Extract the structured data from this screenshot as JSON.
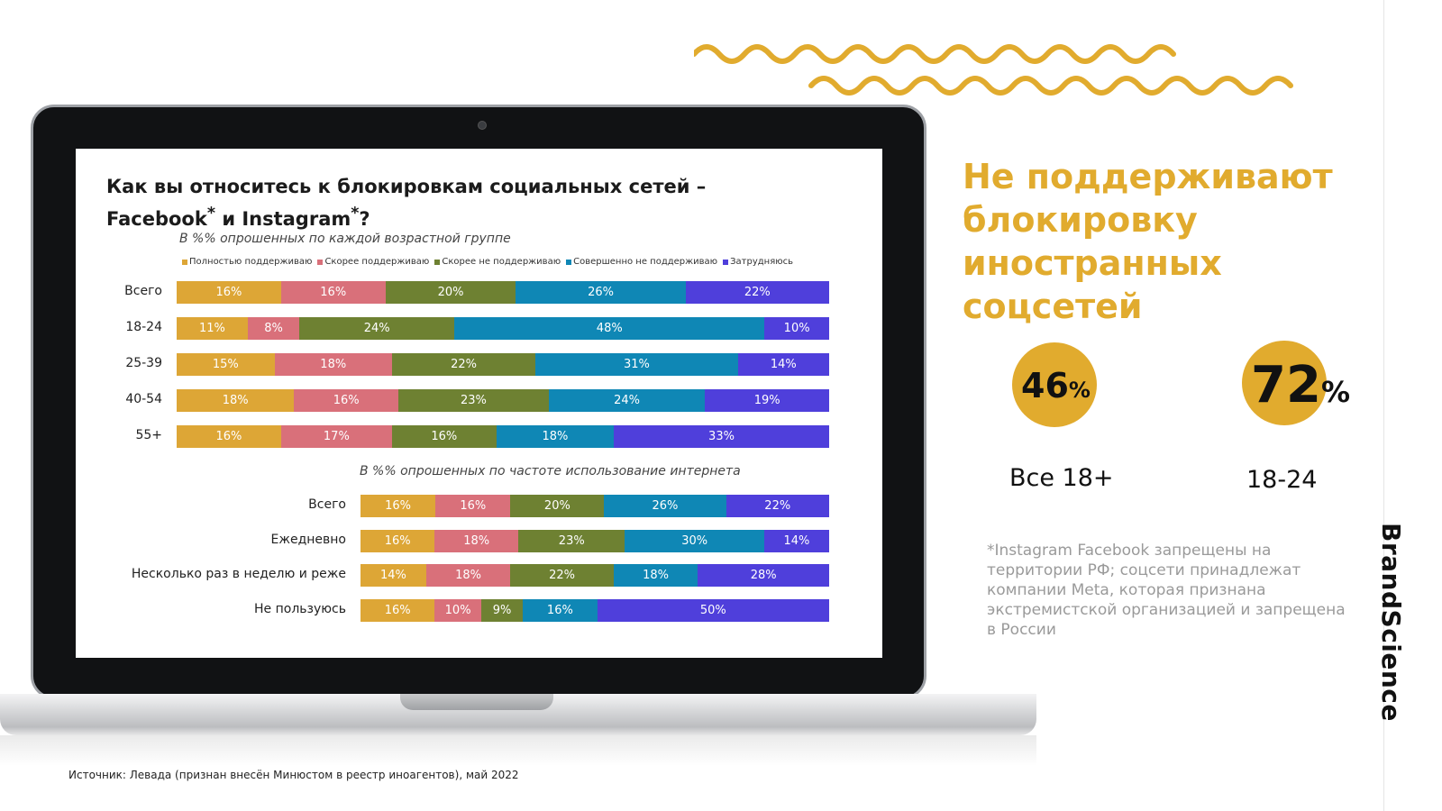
{
  "chart_title_line1": "Как вы относитесь к блокировкам социальных сетей –",
  "chart_title_line2_a": "Facebook",
  "chart_title_line2_b": "и Instagram",
  "chart_title_line2_c": "?",
  "asterisk": "*",
  "colors": {
    "full_support": "#dda636",
    "rather_support": "#d9707a",
    "rather_not_support": "#6e8132",
    "strongly_not_support": "#0f87b5",
    "hard_to_say": "#4f3fdb",
    "accent": "#e1ab2e"
  },
  "chart_data": [
    {
      "type": "bar",
      "stacked": "horizontal-100",
      "subtitle": "В %% опрошенных по каждой возрастной группе",
      "legend": [
        "Полностью поддерживаю",
        "Скорее поддерживаю",
        "Скорее не поддерживаю",
        "Совершенно не поддерживаю",
        "Затрудняюсь"
      ],
      "categories": [
        "Всего",
        "18-24",
        "25-39",
        "40-54",
        "55+"
      ],
      "series": [
        {
          "name": "Полностью поддерживаю",
          "values": [
            16,
            11,
            15,
            18,
            16
          ]
        },
        {
          "name": "Скорее поддерживаю",
          "values": [
            16,
            8,
            18,
            16,
            17
          ]
        },
        {
          "name": "Скорее не поддерживаю",
          "values": [
            20,
            24,
            22,
            23,
            16
          ]
        },
        {
          "name": "Совершенно не поддерживаю",
          "values": [
            26,
            48,
            31,
            24,
            18
          ]
        },
        {
          "name": "Затрудняюсь",
          "values": [
            22,
            10,
            14,
            19,
            33
          ]
        }
      ]
    },
    {
      "type": "bar",
      "stacked": "horizontal-100",
      "subtitle": "В %% опрошенных по частоте использование интернета",
      "categories": [
        "Всего",
        "Ежедневно",
        "Несколько раз в неделю и реже",
        "Не пользуюсь"
      ],
      "series": [
        {
          "name": "Полностью поддерживаю",
          "values": [
            16,
            16,
            14,
            16
          ]
        },
        {
          "name": "Скорее поддерживаю",
          "values": [
            16,
            18,
            18,
            10
          ]
        },
        {
          "name": "Скорее не поддерживаю",
          "values": [
            20,
            23,
            22,
            9
          ]
        },
        {
          "name": "Совершенно не поддерживаю",
          "values": [
            26,
            30,
            18,
            16
          ]
        },
        {
          "name": "Затрудняюсь",
          "values": [
            22,
            14,
            28,
            50
          ]
        }
      ]
    }
  ],
  "headline": "Не поддерживают блокировку иностранных соцсетей",
  "stats": [
    {
      "value": "46",
      "unit": "%",
      "label": "Все 18+"
    },
    {
      "value": "72",
      "unit": "%",
      "label": "18-24"
    }
  ],
  "footnote": "*Instagram Facebook запрещены на территории РФ; соцсети принадлежат компании Meta, которая признана экстремистской организацией и запрещена в России",
  "source": "Источник: Левада (признан внесён Минюстом в реестр иноагентов), май 2022",
  "brand": "BrandScience"
}
